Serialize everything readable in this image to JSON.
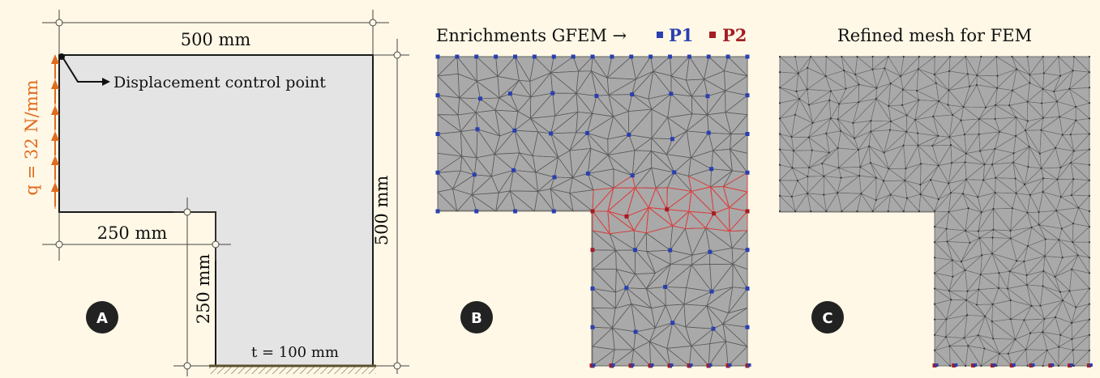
{
  "panels": [
    {
      "letter": "A"
    },
    {
      "letter": "B"
    },
    {
      "letter": "C"
    }
  ],
  "panel_a": {
    "width_label": "500 mm",
    "height_label": "500 mm",
    "bottom_width_label": "250 mm",
    "inner_height_label": "250 mm",
    "load_label": "q = 32 N/mm",
    "control_point_label": "Displacement control point",
    "thickness_label": "t = 100 mm"
  },
  "panel_b": {
    "title": "Enrichments GFEM →",
    "legend": [
      {
        "label": "P1",
        "color": "#2a3fb0"
      },
      {
        "label": "P2",
        "color": "#a31d24"
      }
    ]
  },
  "panel_c": {
    "title": "Refined mesh for FEM"
  },
  "colors": {
    "load": "#e06a1e",
    "specimen_fill": "#e4e4e4",
    "mesh_fill": "#a9a9a9",
    "mesh_line": "#5a5a5a",
    "p1": "#2a3fb0",
    "p2": "#a31d24",
    "badge": "#222222",
    "background": "#fff8e6"
  }
}
